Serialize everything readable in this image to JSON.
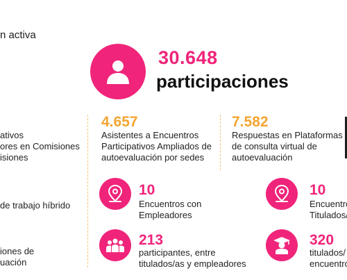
{
  "header_fragment": "n activa",
  "hero": {
    "number": "30.648",
    "word": "participaciones"
  },
  "left_fragments": [
    "ativos",
    "ores en Comisiones",
    "isiones",
    "de trabajo híbrido",
    "iones de",
    "uación"
  ],
  "col_a": {
    "number": "4.657",
    "lines": [
      "Asistentes a Encuentros",
      "Participativos Ampliados de",
      "autoevaluación por sedes"
    ]
  },
  "col_b": {
    "number": "7.582",
    "lines": [
      "Respuestas en Plataformas",
      "de consulta virtual de",
      "autoevaluación"
    ]
  },
  "stat_a1": {
    "number": "10",
    "lines": [
      "Encuentros con",
      "Empleadores"
    ]
  },
  "stat_a2": {
    "number": "213",
    "lines": [
      "participantes, entre",
      "titulados/as y empleadores"
    ]
  },
  "stat_b1": {
    "number": "10",
    "lines": [
      "Encuentros",
      "Titulados/"
    ]
  },
  "stat_b2": {
    "number": "320",
    "lines": [
      "titulados/",
      "encuentro"
    ]
  },
  "colors": {
    "pink": "#f0247a",
    "orange": "#f3a531",
    "dash": "#f3c27a"
  },
  "icons": [
    "user-icon",
    "location-pin-icon",
    "group-icon",
    "graduate-icon"
  ]
}
